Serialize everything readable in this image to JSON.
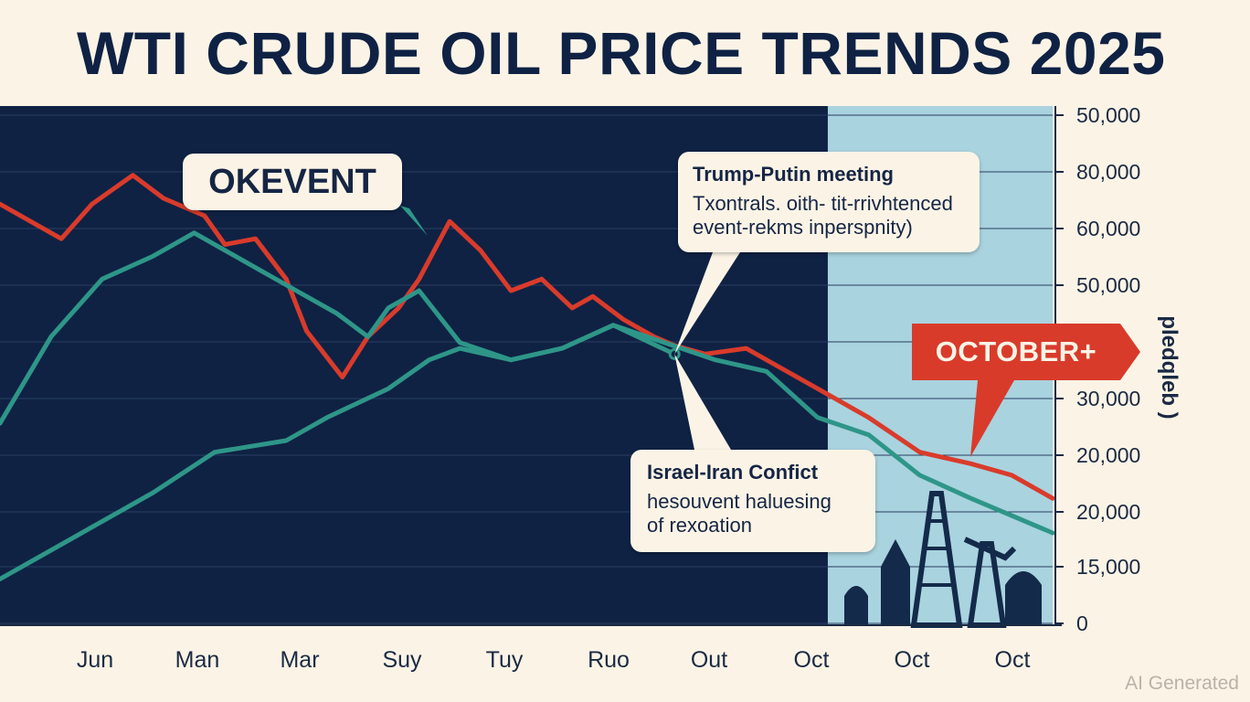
{
  "title": "WTI CRUDE OIL PRICE TRENDS 2025",
  "colors": {
    "background": "#fbf4e6",
    "panel": "#0f2244",
    "highlight": "#a9d3df",
    "red_series": "#d93b2b",
    "teal_series": "#2e9688",
    "text": "#0f2244"
  },
  "chart_data": {
    "type": "line",
    "title": "WTI CRUDE OIL PRICE TRENDS 2025",
    "categories": [
      "Jun",
      "Man",
      "Mar",
      "Suy",
      "Tuy",
      "Ruo",
      "Out",
      "Oct",
      "Oct",
      "Oct"
    ],
    "y_tick_labels": [
      "50,000",
      "80,000",
      "60,000",
      "50,000",
      "",
      "30,000",
      "20,000",
      "20,000",
      "15,000",
      "0"
    ],
    "ylabel": "pledqleb )",
    "ylim": [
      0,
      9
    ],
    "x_range": [
      0,
      10.3
    ],
    "grid": true,
    "highlight_region": {
      "from_x": 8.1,
      "to_x": 10.3
    },
    "series": [
      {
        "name": "Red line",
        "color": "#d93b2b",
        "points": [
          [
            0,
            7.3
          ],
          [
            0.6,
            6.7
          ],
          [
            0.9,
            7.3
          ],
          [
            1.3,
            7.8
          ],
          [
            1.6,
            7.4
          ],
          [
            2.0,
            7.1
          ],
          [
            2.2,
            6.6
          ],
          [
            2.5,
            6.7
          ],
          [
            2.8,
            6.0
          ],
          [
            3.0,
            5.1
          ],
          [
            3.35,
            4.3
          ],
          [
            3.6,
            5.0
          ],
          [
            3.9,
            5.5
          ],
          [
            4.1,
            6.0
          ],
          [
            4.4,
            7.0
          ],
          [
            4.7,
            6.5
          ],
          [
            5.0,
            5.8
          ],
          [
            5.3,
            6.0
          ],
          [
            5.6,
            5.5
          ],
          [
            5.8,
            5.7
          ],
          [
            6.1,
            5.3
          ],
          [
            6.4,
            5.0
          ],
          [
            6.6,
            4.85
          ],
          [
            6.9,
            4.7
          ],
          [
            7.3,
            4.8
          ],
          [
            7.6,
            4.5
          ],
          [
            8.0,
            4.1
          ],
          [
            8.5,
            3.6
          ],
          [
            9.0,
            3.0
          ],
          [
            9.5,
            2.8
          ],
          [
            9.9,
            2.6
          ],
          [
            10.3,
            2.2
          ]
        ]
      },
      {
        "name": "Teal line A",
        "color": "#2e9688",
        "points": [
          [
            0,
            3.5
          ],
          [
            0.5,
            5.0
          ],
          [
            1.0,
            6.0
          ],
          [
            1.5,
            6.4
          ],
          [
            1.9,
            6.8
          ],
          [
            2.4,
            6.3
          ],
          [
            2.9,
            5.8
          ],
          [
            3.3,
            5.4
          ],
          [
            3.6,
            5.0
          ],
          [
            3.8,
            5.5
          ],
          [
            4.1,
            5.8
          ],
          [
            4.5,
            4.9
          ],
          [
            5.0,
            4.6
          ],
          [
            5.5,
            4.8
          ],
          [
            6.0,
            5.2
          ],
          [
            6.5,
            4.9
          ],
          [
            7.0,
            4.6
          ],
          [
            7.5,
            4.4
          ],
          [
            8.0,
            3.6
          ],
          [
            8.5,
            3.3
          ],
          [
            9.0,
            2.6
          ],
          [
            9.5,
            2.2
          ],
          [
            10.3,
            1.6
          ]
        ]
      },
      {
        "name": "Teal line B",
        "color": "#2e9688",
        "points": [
          [
            0,
            0.8
          ],
          [
            0.7,
            1.5
          ],
          [
            1.5,
            2.3
          ],
          [
            2.1,
            3.0
          ],
          [
            2.8,
            3.2
          ],
          [
            3.2,
            3.6
          ],
          [
            3.8,
            4.1
          ],
          [
            4.2,
            4.6
          ],
          [
            4.5,
            4.8
          ],
          [
            5.0,
            4.6
          ],
          [
            5.5,
            4.8
          ],
          [
            6.0,
            5.2
          ],
          [
            6.6,
            4.7
          ]
        ]
      }
    ],
    "annotations": [
      {
        "id": "event",
        "text": "OKEVENT"
      },
      {
        "id": "trump",
        "title": "Trump-Putin meeting",
        "body": [
          "Txontrals. oith- tit-rrivhtenced",
          "event-rekms inperspnity)"
        ]
      },
      {
        "id": "israel",
        "title": "Israel-Iran Confict",
        "body": [
          "hesouvent haluesing",
          "of rexoation"
        ]
      },
      {
        "id": "october",
        "text": "OCTOBER+"
      }
    ]
  },
  "watermark": "AI Generated"
}
